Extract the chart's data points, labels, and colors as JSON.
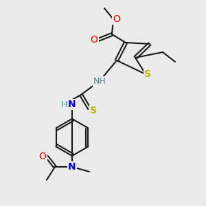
{
  "bg_color": "#ebebeb",
  "bond_color": "#1a1a1a",
  "atom_colors": {
    "S": "#b8b800",
    "N": "#0000dd",
    "O": "#ee0000",
    "NH": "#4a9090",
    "C": "#1a1a1a"
  },
  "figsize": [
    3.0,
    3.0
  ],
  "dpi": 100
}
